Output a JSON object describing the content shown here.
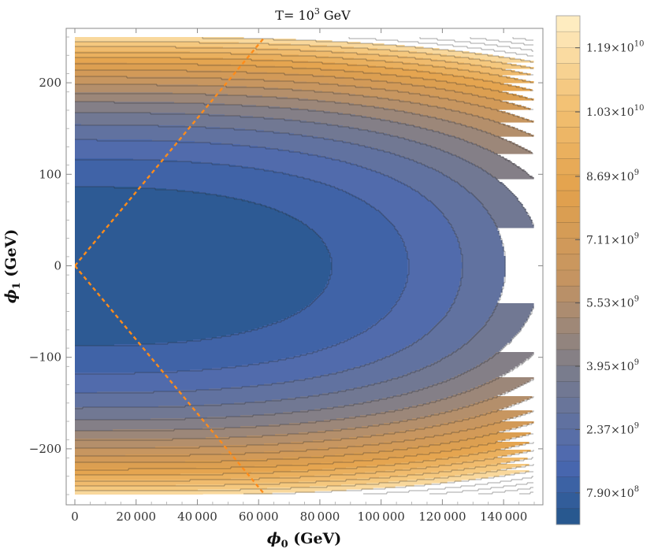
{
  "chart_data": {
    "type": "heatmap",
    "subtype": "contour",
    "title": "T= 10^3  GeV",
    "title_parts": {
      "base": "T= 10",
      "exponent": "3",
      "unit": "  GeV"
    },
    "xlabel": "ϕ₀ (GeV)",
    "ylabel": "ϕ₁ (GeV)",
    "xlim": [
      0,
      150000
    ],
    "ylim": [
      -250,
      250
    ],
    "x_ticks": [
      0,
      20000,
      40000,
      60000,
      80000,
      100000,
      120000,
      140000
    ],
    "x_tick_labels": [
      "0",
      "20 000",
      "40 000",
      "60 000",
      "80 000",
      "100 000",
      "120 000",
      "140 000"
    ],
    "y_ticks": [
      200,
      100,
      0,
      -100,
      -200
    ],
    "y_tick_labels": [
      "200",
      "100",
      "0",
      "−100",
      "−200"
    ],
    "colorbar": {
      "range": [
        0,
        12700000000.0
      ],
      "labels": [
        {
          "value": 11900000000.0,
          "mantissa": "1.19",
          "exponent": "10"
        },
        {
          "value": 10300000000.0,
          "mantissa": "1.03",
          "exponent": "10"
        },
        {
          "value": 8690000000.0,
          "mantissa": "8.69",
          "exponent": "9"
        },
        {
          "value": 7110000000.0,
          "mantissa": "7.11",
          "exponent": "9"
        },
        {
          "value": 5530000000.0,
          "mantissa": "5.53",
          "exponent": "9"
        },
        {
          "value": 3950000000.0,
          "mantissa": "3.95",
          "exponent": "9"
        },
        {
          "value": 2370000000.0,
          "mantissa": "2.37",
          "exponent": "9"
        },
        {
          "value": 790000000.0,
          "mantissa": "7.90",
          "exponent": "8"
        }
      ],
      "level_step": 395000000.0
    },
    "contour_model": {
      "description": "V(phi0,phi1) approx base + a*phi1^2 + b*phi1^4 + c*phi0^2",
      "level_step": 790000000.0
    },
    "dashed_lines": {
      "color": "#ff8c1a",
      "points": [
        [
          [
            0,
            0
          ],
          [
            62000,
            250
          ]
        ],
        [
          [
            0,
            0
          ],
          [
            62000,
            -250
          ]
        ]
      ]
    },
    "colors": {
      "low": "#23568a",
      "mid_blue": "#4a68b2",
      "mid_gray": "#7a7c8c",
      "mid_orange": "#e3a24c",
      "high": "#fff0c8"
    },
    "grid": false,
    "legend": "colorbar-right"
  }
}
